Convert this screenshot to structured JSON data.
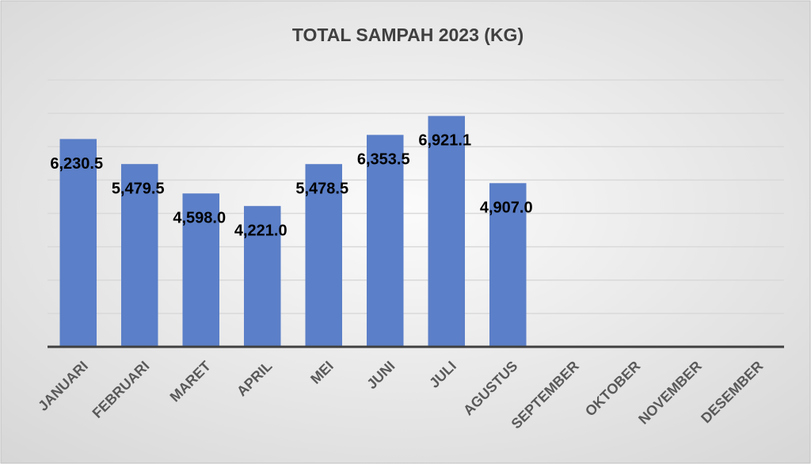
{
  "chart_data": {
    "type": "bar",
    "title": "TOTAL SAMPAH 2023 (KG)",
    "categories": [
      "JANUARI",
      "FEBRUARI",
      "MARET",
      "APRIL",
      "MEI",
      "JUNI",
      "JULI",
      "AGUSTUS",
      "SEPTEMBER",
      "OKTOBER",
      "NOVEMBER",
      "DESEMBER"
    ],
    "values": [
      6230.5,
      5479.5,
      4598.0,
      4221.0,
      5478.5,
      6353.5,
      6921.1,
      4907.0,
      null,
      null,
      null,
      null
    ],
    "value_labels": [
      "6,230.5",
      "5,479.5",
      "4,598.0",
      "4,221.0",
      "5,478.5",
      "6,353.5",
      "6,921.1",
      "4,907.0",
      null,
      null,
      null,
      null
    ],
    "color": "#5b7fc8",
    "ylim": [
      0,
      8000
    ],
    "yticks": [
      0,
      1000,
      2000,
      3000,
      4000,
      5000,
      6000,
      7000,
      8000
    ],
    "grid": true
  }
}
